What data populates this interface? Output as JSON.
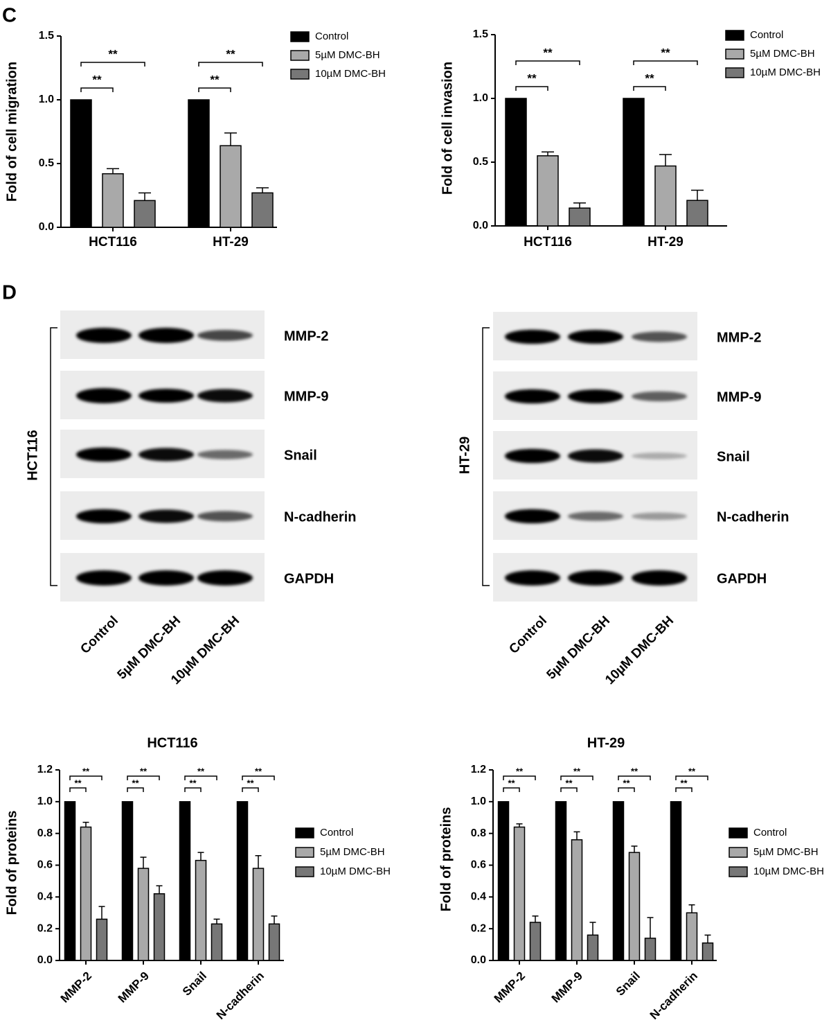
{
  "panel_labels": [
    "C",
    "D"
  ],
  "blots": [
    {
      "cell_line": "HCT116",
      "proteins": [
        "MMP-2",
        "MMP-9",
        "Snail",
        "N-cadherin",
        "GAPDH"
      ],
      "lanes": [
        "Control",
        "5µM DMC-BH",
        "10µM DMC-BH"
      ]
    },
    {
      "cell_line": "HT-29",
      "proteins": [
        "MMP-2",
        "MMP-9",
        "Snail",
        "N-cadherin",
        "GAPDH"
      ],
      "lanes": [
        "Control",
        "5µM DMC-BH",
        "10µM DMC-BH"
      ]
    }
  ],
  "chart_data": [
    {
      "type": "bar",
      "y_label": "Fold of cell migration",
      "categories": [
        "HCT116",
        "HT-29"
      ],
      "series": [
        {
          "name": "Control",
          "color": "#000000",
          "values": [
            1,
            1
          ]
        },
        {
          "name": "5µM DMC-BH",
          "color": "#a9a9a9",
          "values": [
            0.42,
            0.64
          ],
          "errors": [
            0.04,
            0.1
          ]
        },
        {
          "name": "10µM DMC-BH",
          "color": "#777777",
          "values": [
            0.21,
            0.27
          ],
          "errors": [
            0.06,
            0.04
          ]
        }
      ],
      "ylim": [
        0,
        1.5
      ],
      "yticks": [
        {
          "value": 0,
          "label": "0.0"
        },
        0.5,
        {
          "value": 1,
          "label": "1.0"
        },
        1.5
      ],
      "annotations": [
        "**",
        "**",
        "**",
        "**"
      ]
    },
    {
      "type": "bar",
      "y_label": "Fold of cell invasion",
      "categories": [
        "HCT116",
        "HT-29"
      ],
      "series": [
        {
          "name": "Control",
          "color": "#000000",
          "values": [
            1,
            1
          ]
        },
        {
          "name": "5µM DMC-BH",
          "color": "#a9a9a9",
          "values": [
            0.55,
            0.47
          ],
          "errors": [
            0.03,
            0.09
          ]
        },
        {
          "name": "10µM DMC-BH",
          "color": "#777777",
          "values": [
            0.14,
            0.2
          ],
          "errors": [
            0.04,
            0.08
          ]
        }
      ],
      "ylim": [
        0,
        1.5
      ],
      "yticks": [
        {
          "value": 0,
          "label": "0.0"
        },
        0.5,
        {
          "value": 1,
          "label": "1.0"
        },
        1.5
      ],
      "annotations": [
        "**",
        "**",
        "**",
        "**"
      ]
    },
    {
      "type": "bar",
      "title": "HCT116",
      "y_label": "Fold of proteins",
      "categories": [
        "MMP-2",
        "MMP-9",
        "Snail",
        "N-cadherin"
      ],
      "series": [
        {
          "name": "Control",
          "color": "#000000",
          "values": [
            1,
            1,
            1,
            1
          ]
        },
        {
          "name": "5µM DMC-BH",
          "color": "#a9a9a9",
          "values": [
            0.84,
            0.58,
            0.63,
            0.58
          ],
          "errors": [
            0.03,
            0.07,
            0.05,
            0.08
          ]
        },
        {
          "name": "10µM DMC-BH",
          "color": "#777777",
          "values": [
            0.26,
            0.42,
            0.23,
            0.23
          ],
          "errors": [
            0.08,
            0.05,
            0.03,
            0.05
          ]
        }
      ],
      "ylim": [
        0,
        1.2
      ],
      "yticks": [
        {
          "value": 0,
          "label": "0.0"
        },
        0.2,
        0.4,
        0.6,
        0.8,
        {
          "value": 1,
          "label": "1.0"
        },
        1.2
      ],
      "annotations": [
        "**",
        "**",
        "**",
        "**",
        "**",
        "**",
        "**",
        "**"
      ]
    },
    {
      "type": "bar",
      "title": "HT-29",
      "y_label": "Fold of proteins",
      "categories": [
        "MMP-2",
        "MMP-9",
        "Snail",
        "N-cadherin"
      ],
      "series": [
        {
          "name": "Control",
          "color": "#000000",
          "values": [
            1,
            1,
            1,
            1
          ]
        },
        {
          "name": "5µM DMC-BH",
          "color": "#a9a9a9",
          "values": [
            0.84,
            0.76,
            0.68,
            0.3
          ],
          "errors": [
            0.02,
            0.05,
            0.04,
            0.05
          ]
        },
        {
          "name": "10µM DMC-BH",
          "color": "#777777",
          "values": [
            0.24,
            0.16,
            0.14,
            0.11
          ],
          "errors": [
            0.04,
            0.08,
            0.13,
            0.05
          ]
        }
      ],
      "ylim": [
        0,
        1.2
      ],
      "yticks": [
        {
          "value": 0,
          "label": "0.0"
        },
        0.2,
        0.4,
        0.6,
        0.8,
        {
          "value": 1,
          "label": "1.0"
        },
        1.2
      ],
      "annotations": [
        "**",
        "**",
        "**",
        "**",
        "**",
        "**",
        "**",
        "**"
      ]
    }
  ]
}
